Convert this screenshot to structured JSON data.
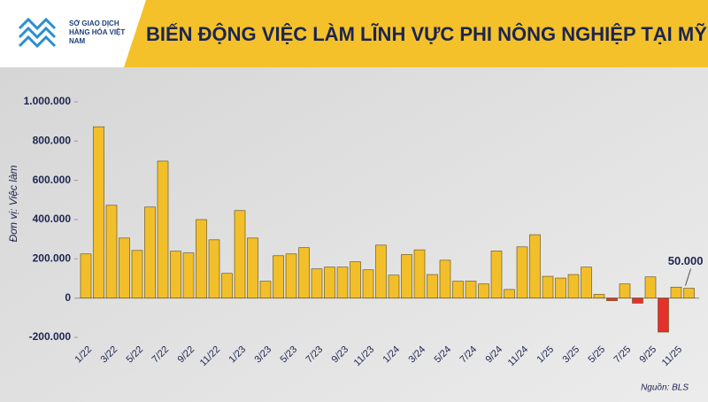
{
  "header": {
    "logo_text": "SỞ GIAO DỊCH HÀNG HÓA VIỆT NAM"
  },
  "chart_data": {
    "type": "bar",
    "title": "BIẾN ĐỘNG VIỆC LÀM LĨNH VỰC PHI NÔNG NGHIỆP TẠI MỸ",
    "y_label": "Đơn vị: Việc làm",
    "source": "Nguồn: BLS",
    "categories": [
      "1/22",
      null,
      "3/22",
      null,
      "5/22",
      null,
      "7/22",
      null,
      "9/22",
      null,
      "11/22",
      null,
      "1/23",
      null,
      "3/23",
      null,
      "5/23",
      null,
      "7/23",
      null,
      "9/23",
      null,
      "11/23",
      null,
      "1/24",
      null,
      "3/24",
      null,
      "5/24",
      null,
      "7/24",
      null,
      "9/24",
      null,
      "11/24",
      null,
      "1/25",
      null,
      "3/25",
      null,
      "5/25",
      null,
      "7/25",
      null,
      "9/25",
      null,
      "11/25",
      null
    ],
    "values": [
      225000,
      873000,
      473000,
      306000,
      243000,
      464000,
      698000,
      239000,
      230000,
      400000,
      297000,
      126000,
      446000,
      306000,
      86000,
      216000,
      225000,
      257000,
      149000,
      158000,
      158000,
      185000,
      144000,
      270000,
      117000,
      222000,
      246000,
      120000,
      193000,
      86000,
      87000,
      72000,
      240000,
      44000,
      261000,
      323000,
      111000,
      102000,
      120000,
      158000,
      19000,
      -13000,
      72000,
      -26000,
      108000,
      -173000,
      56000,
      50000
    ],
    "value_labels": [
      null,
      null,
      null,
      null,
      null,
      null,
      null,
      null,
      null,
      null,
      null,
      null,
      null,
      null,
      null,
      null,
      null,
      null,
      null,
      null,
      null,
      null,
      null,
      null,
      null,
      null,
      null,
      null,
      null,
      null,
      null,
      null,
      null,
      null,
      null,
      null,
      null,
      null,
      null,
      null,
      null,
      null,
      null,
      null,
      null,
      null,
      null,
      "50.000"
    ],
    "color": "#f2bf2a",
    "negative_color": "#e5302c",
    "ylim": [
      -200000,
      1000000
    ],
    "yticks": [
      {
        "value": -200000,
        "label": "-200.000"
      },
      0,
      {
        "value": 200000,
        "label": "200.000"
      },
      {
        "value": 400000,
        "label": "400.000"
      },
      {
        "value": 600000,
        "label": "600.000"
      },
      {
        "value": 800000,
        "label": "800.000"
      },
      {
        "value": 1000000,
        "label": "1.000.000"
      }
    ],
    "grid": false
  }
}
